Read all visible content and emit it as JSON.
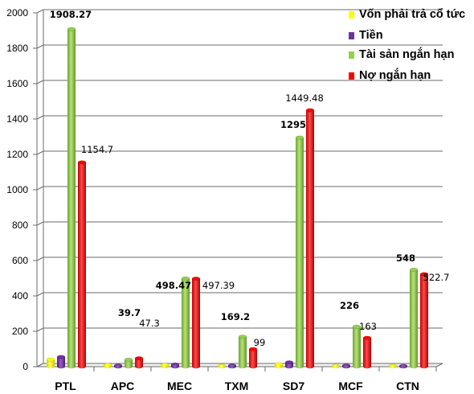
{
  "chart_data": {
    "type": "bar",
    "categories": [
      "PTL",
      "APC",
      "MEC",
      "TXM",
      "SD7",
      "MCF",
      "CTN"
    ],
    "series": [
      {
        "name": "Vốn phải trả cổ tức",
        "color": "#ffff00",
        "values": [
          40,
          10,
          10,
          4,
          14,
          4,
          4
        ]
      },
      {
        "name": "Tiền",
        "color": "#7030a0",
        "values": [
          55,
          6,
          12,
          6,
          24,
          6,
          4
        ]
      },
      {
        "name": "Tài sản ngắn hạn",
        "color": "#92d050",
        "values": [
          1908.27,
          39.7,
          498.47,
          169.2,
          1295,
          226,
          548
        ]
      },
      {
        "name": "Nợ ngắn hạn",
        "color": "#ff0000",
        "values": [
          1154.7,
          47.3,
          497.39,
          99,
          1449.48,
          163,
          522.7
        ]
      }
    ],
    "data_labels": {
      "Tài sản ngắn hạn": [
        "1908.27",
        "39.7",
        "498.47",
        "169.2",
        "1295",
        "226",
        "548"
      ],
      "Nợ ngắn hạn": [
        "1154.7",
        "47.3",
        "497.39",
        "99",
        "1449.48",
        "163",
        "522.7"
      ]
    },
    "yticks": [
      "0",
      "200",
      "400",
      "600",
      "800",
      "1000",
      "1200",
      "1400",
      "1600",
      "1800",
      "2000"
    ],
    "ylim": [
      0,
      2000
    ],
    "grid": true,
    "legend_position": "top-right",
    "title": "",
    "xlabel": "",
    "ylabel": ""
  }
}
